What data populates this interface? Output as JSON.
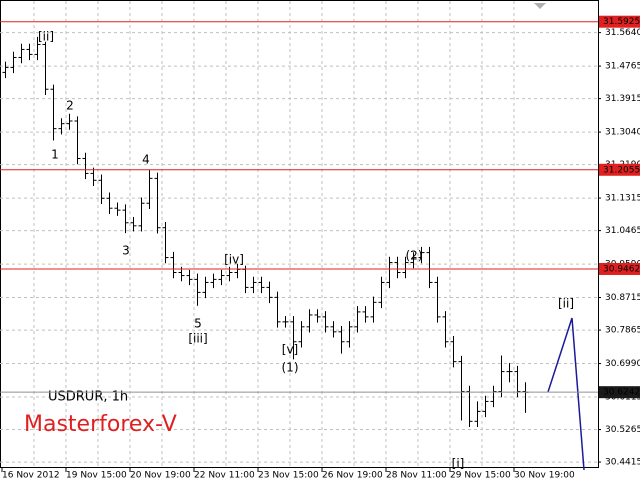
{
  "chart_data": {
    "type": "ohlc",
    "symbol": "USDRUR, 1h",
    "watermark": "Masterforex-V",
    "categories": [
      "16 Nov 2012",
      null,
      null,
      null,
      null,
      null,
      null,
      null,
      "19 Nov 15:00",
      null,
      null,
      null,
      null,
      null,
      null,
      null,
      "20 Nov 19:00",
      null,
      null,
      null,
      null,
      null,
      null,
      null,
      "22 Nov 11:00",
      null,
      null,
      null,
      null,
      null,
      null,
      null,
      "23 Nov 15:00",
      null,
      null,
      null,
      null,
      null,
      null,
      null,
      "26 Nov 19:00",
      null,
      null,
      null,
      null,
      null,
      null,
      null,
      "28 Nov 11:00",
      null,
      null,
      null,
      null,
      null,
      null,
      null,
      "29 Nov 15:00",
      null,
      null,
      null,
      null,
      null,
      null,
      null,
      "30 Nov 19:00",
      null
    ],
    "open": [
      31.46,
      31.473,
      31.499,
      31.52,
      31.507,
      31.533,
      31.416,
      31.313,
      31.326,
      31.333,
      31.235,
      31.196,
      31.178,
      31.131,
      31.105,
      31.1,
      31.067,
      31.059,
      31.118,
      31.183,
      31.054,
      30.976,
      30.937,
      30.929,
      30.919,
      30.885,
      30.911,
      30.919,
      30.929,
      30.937,
      30.945,
      30.898,
      30.911,
      30.898,
      30.872,
      30.808,
      30.808,
      30.756,
      30.795,
      30.826,
      30.821,
      30.795,
      30.782,
      30.756,
      30.795,
      30.834,
      30.821,
      30.859,
      30.911,
      30.963,
      30.937,
      30.963,
      30.976,
      30.989,
      30.911,
      30.821,
      30.756,
      30.704,
      30.626,
      30.548,
      30.574,
      30.6,
      30.626,
      30.678,
      30.678,
      30.626
    ],
    "high": [
      31.488,
      31.514,
      31.535,
      31.535,
      31.553,
      31.54,
      31.428,
      31.34,
      31.352,
      31.345,
      31.25,
      31.211,
      31.193,
      31.146,
      31.12,
      31.115,
      31.082,
      31.133,
      31.205,
      31.198,
      31.069,
      30.991,
      30.952,
      30.944,
      30.934,
      30.926,
      30.934,
      30.944,
      30.952,
      30.96,
      30.955,
      30.926,
      30.926,
      30.913,
      30.887,
      30.823,
      30.823,
      30.81,
      30.841,
      30.841,
      30.836,
      30.81,
      30.797,
      30.81,
      30.849,
      30.849,
      30.874,
      30.926,
      30.978,
      30.978,
      30.978,
      30.99,
      31.004,
      31.004,
      30.926,
      30.836,
      30.771,
      30.719,
      30.641,
      30.6,
      30.615,
      30.641,
      30.72,
      30.7,
      30.693,
      30.65
    ],
    "low": [
      31.445,
      31.458,
      31.484,
      31.492,
      31.492,
      31.401,
      31.282,
      31.298,
      31.31,
      31.22,
      31.181,
      31.163,
      31.116,
      31.09,
      31.085,
      31.04,
      31.044,
      31.044,
      31.103,
      31.039,
      30.961,
      30.922,
      30.914,
      30.904,
      30.85,
      30.87,
      30.896,
      30.904,
      30.914,
      30.922,
      30.883,
      30.883,
      30.883,
      30.857,
      30.793,
      30.793,
      30.71,
      30.741,
      30.78,
      30.806,
      30.78,
      30.767,
      30.725,
      30.741,
      30.78,
      30.806,
      30.806,
      30.844,
      30.896,
      30.922,
      30.922,
      30.948,
      30.961,
      30.896,
      30.806,
      30.741,
      30.689,
      30.55,
      30.533,
      30.533,
      30.559,
      30.585,
      30.611,
      30.65,
      30.611,
      30.57
    ],
    "close": [
      31.473,
      31.499,
      31.52,
      31.507,
      31.533,
      31.416,
      31.313,
      31.326,
      31.333,
      31.235,
      31.196,
      31.178,
      31.131,
      31.105,
      31.1,
      31.067,
      31.059,
      31.118,
      31.183,
      31.054,
      30.976,
      30.937,
      30.929,
      30.919,
      30.885,
      30.911,
      30.919,
      30.929,
      30.937,
      30.945,
      30.898,
      30.911,
      30.898,
      30.872,
      30.808,
      30.808,
      30.756,
      30.795,
      30.826,
      30.821,
      30.795,
      30.782,
      30.756,
      30.795,
      30.834,
      30.821,
      30.859,
      30.911,
      30.963,
      30.937,
      30.963,
      30.976,
      30.989,
      30.911,
      30.821,
      30.756,
      30.704,
      30.626,
      30.548,
      30.574,
      30.6,
      30.626,
      30.678,
      30.678,
      30.626,
      30.624
    ],
    "color": "#000000",
    "ylim": [
      30.426,
      31.644
    ],
    "yticks": [
      {
        "value": 31.564,
        "label": "31.5640"
      },
      31.4765,
      31.3915,
      {
        "value": 31.304,
        "label": "31.3040"
      },
      {
        "value": 31.219,
        "label": "31.2190"
      },
      31.1315,
      31.0465,
      {
        "value": 30.959,
        "label": "30.9590"
      },
      30.8715,
      30.7865,
      {
        "value": 30.699,
        "label": "30.6990"
      },
      30.6115,
      30.5265,
      30.4415
    ],
    "grid": true,
    "levels": [
      {
        "value": 31.5925,
        "color": "#e02020"
      },
      {
        "value": 31.2055,
        "color": "#e02020"
      },
      {
        "value": 30.9462,
        "color": "#e02020"
      },
      {
        "value": 30.6242,
        "color": "#909090"
      }
    ],
    "annotations": [
      "[ii]",
      "2",
      "1",
      "4",
      "3",
      "5",
      "[iii]",
      "[iv]",
      "[v]",
      "(1)",
      "(2)",
      "[i]",
      "[ii]"
    ]
  }
}
